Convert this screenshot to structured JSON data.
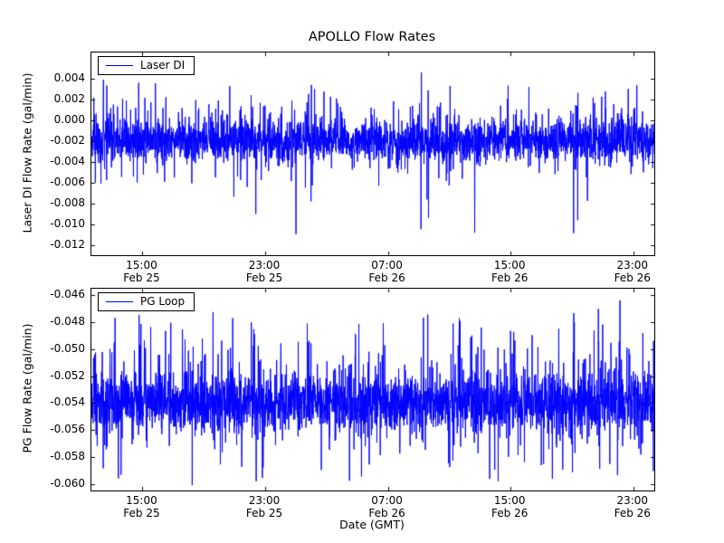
{
  "figure": {
    "title": "APOLLO Flow Rates",
    "xlabel": "Date (GMT)",
    "background": "#ffffff",
    "line_color": "#0000ff"
  },
  "chart_data": [
    {
      "type": "line",
      "title": "APOLLO Flow Rates",
      "ylabel": "Laser DI Flow Rate (gal/min)",
      "legend": "Laser DI",
      "legend_position": "upper left",
      "grid": false,
      "ylim": [
        -0.013,
        0.0065
      ],
      "yticks": [
        0.004,
        0.002,
        0.0,
        -0.002,
        -0.004,
        -0.006,
        -0.008,
        -0.01,
        -0.012
      ],
      "ytick_labels": [
        "0.004",
        "0.002",
        "0.000",
        "-0.002",
        "-0.004",
        "-0.006",
        "-0.008",
        "-0.010",
        "-0.012"
      ],
      "xlim_hours": [
        0,
        36.7
      ],
      "xticks_hours": [
        3.33,
        11.33,
        19.33,
        27.33,
        35.33
      ],
      "xtick_labels": [
        [
          "15:00",
          "Feb 25"
        ],
        [
          "23:00",
          "Feb 25"
        ],
        [
          "07:00",
          "Feb 26"
        ],
        [
          "15:00",
          "Feb 26"
        ],
        [
          "23:00",
          "Feb 26"
        ]
      ],
      "series": [
        {
          "name": "Laser DI",
          "color": "#0000ff",
          "baseline": -0.002,
          "noise_std": 0.0009,
          "spike_up": {
            "prob": 0.1,
            "min": 0.0008,
            "max": 0.006
          },
          "spike_down": {
            "prob": 0.06,
            "min": 0.0008,
            "max": 0.005
          },
          "rare_down": {
            "prob": 0.003,
            "min": 0.006,
            "max": 0.0093
          },
          "clip_min": -0.0113,
          "clip_max": 0.0054,
          "n_points": 3000,
          "seed": 12345
        }
      ]
    },
    {
      "type": "line",
      "title": "",
      "ylabel": "PG Flow Rate (gal/min)",
      "xlabel": "Date (GMT)",
      "legend": "PG Loop",
      "legend_position": "upper left",
      "grid": false,
      "ylim": [
        -0.0605,
        -0.0455
      ],
      "yticks": [
        -0.046,
        -0.048,
        -0.05,
        -0.052,
        -0.054,
        -0.056,
        -0.058,
        -0.06
      ],
      "ytick_labels": [
        "-0.046",
        "-0.048",
        "-0.050",
        "-0.052",
        "-0.054",
        "-0.056",
        "-0.058",
        "-0.060"
      ],
      "xlim_hours": [
        0,
        36.7
      ],
      "xticks_hours": [
        3.33,
        11.33,
        19.33,
        27.33,
        35.33
      ],
      "xtick_labels": [
        [
          "15:00",
          "Feb 25"
        ],
        [
          "23:00",
          "Feb 25"
        ],
        [
          "07:00",
          "Feb 26"
        ],
        [
          "15:00",
          "Feb 26"
        ],
        [
          "23:00",
          "Feb 26"
        ]
      ],
      "series": [
        {
          "name": "PG Loop",
          "color": "#0000ff",
          "baseline": -0.054,
          "noise_std": 0.001,
          "spike_up": {
            "prob": 0.12,
            "min": 0.0008,
            "max": 0.0075
          },
          "spike_down": {
            "prob": 0.08,
            "min": 0.0008,
            "max": 0.0058
          },
          "rare_down": {
            "prob": 0.0,
            "min": 0.0,
            "max": 0.0
          },
          "clip_min": -0.0601,
          "clip_max": -0.0458,
          "n_points": 3000,
          "seed": 67890
        }
      ]
    }
  ]
}
